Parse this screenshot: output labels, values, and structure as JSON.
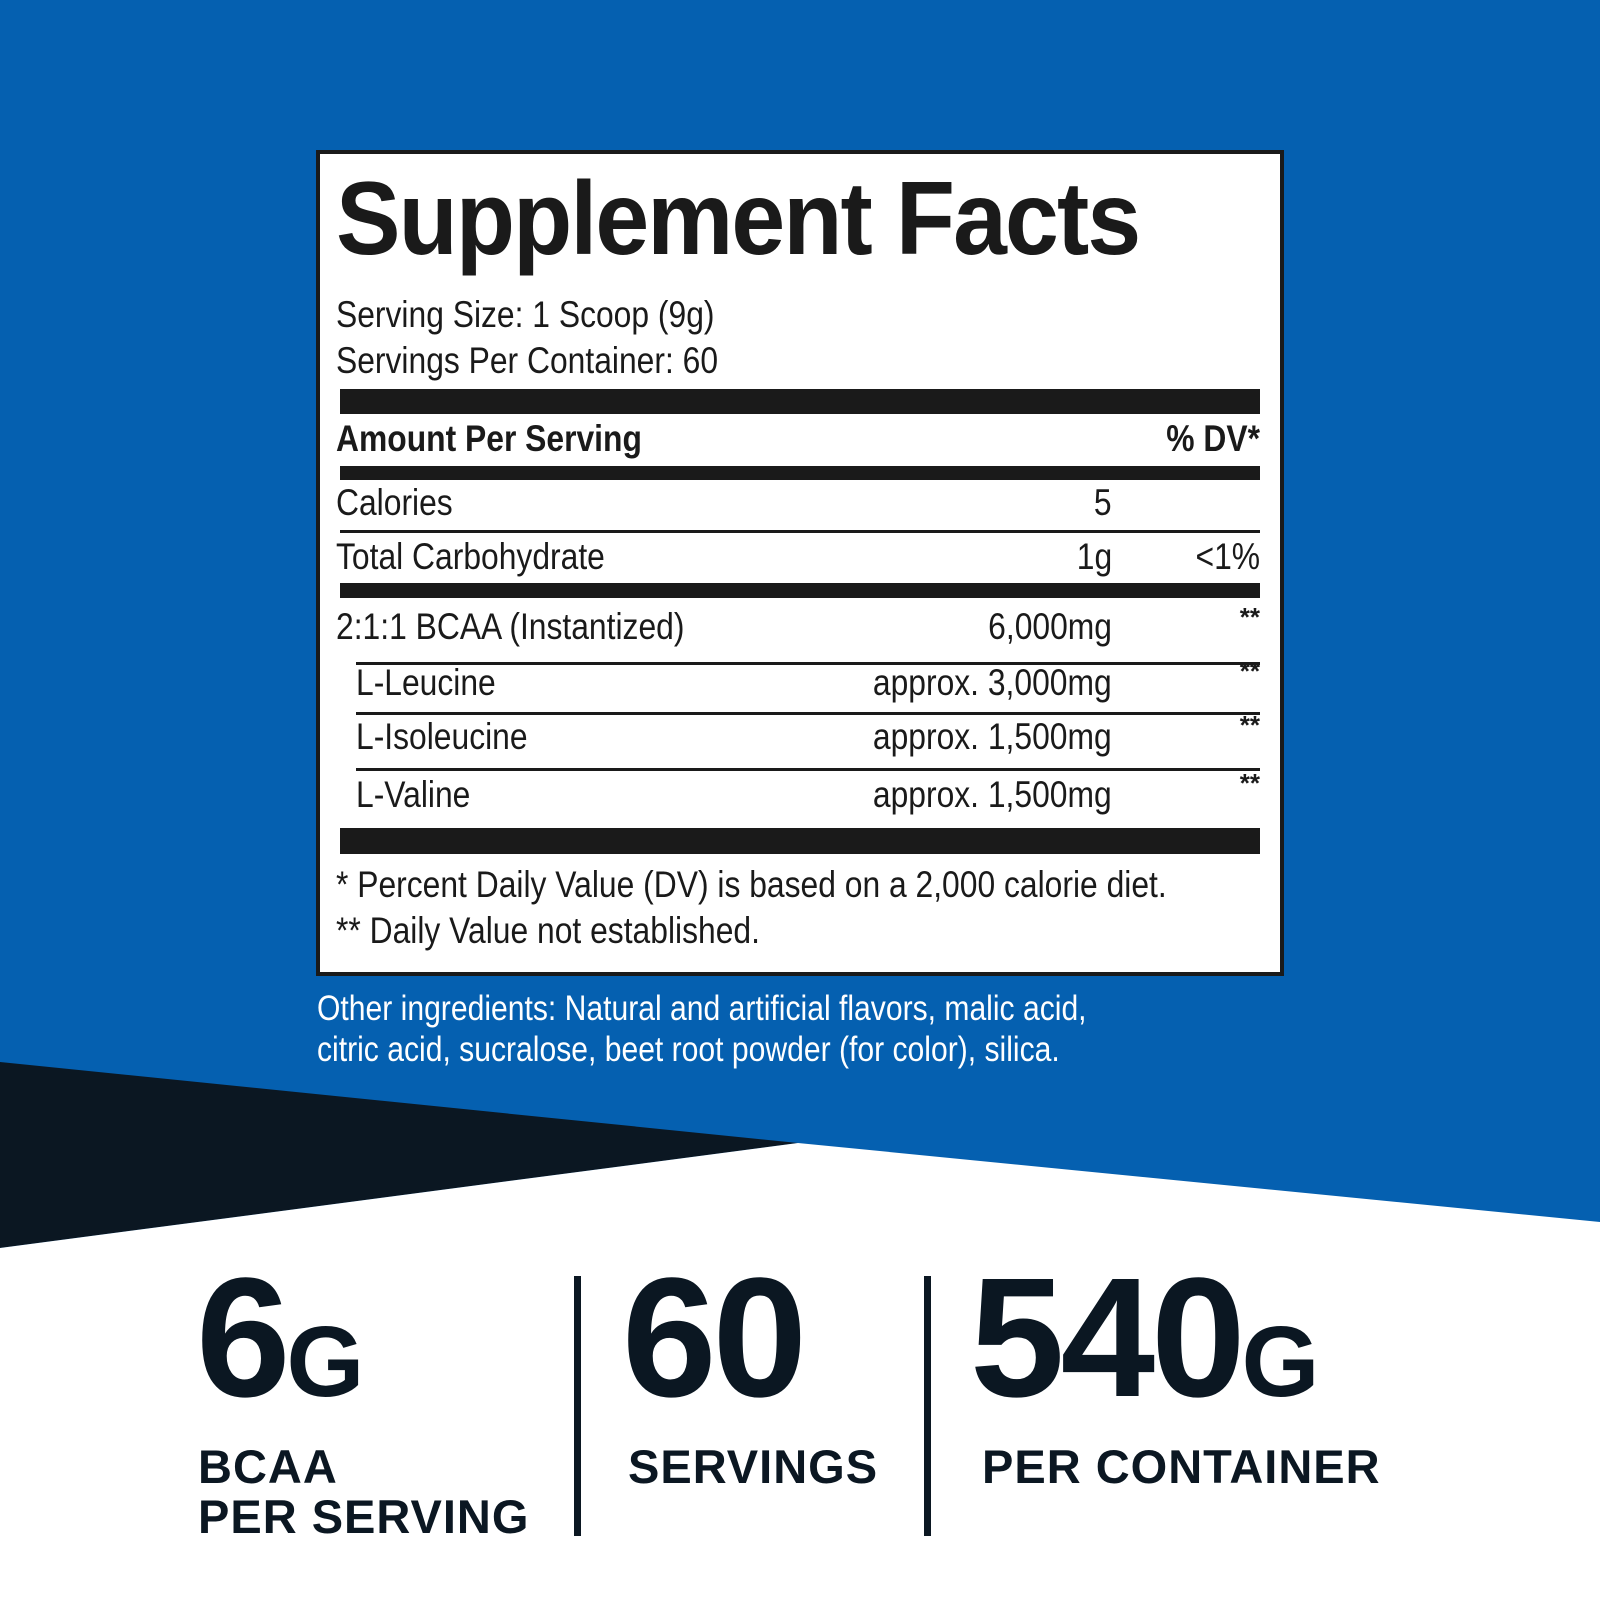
{
  "colors": {
    "background_blue": "#0560b0",
    "dark_navy": "#0b1722",
    "panel": "#ffffff"
  },
  "facts": {
    "title": "Supplement Facts",
    "serving_size": "Serving Size: 1 Scoop (9g)",
    "servings_per_container": "Servings Per Container: 60",
    "header_left": "Amount Per Serving",
    "header_right": "% DV*",
    "rows": [
      {
        "name": "Calories",
        "amount": "5",
        "dv": ""
      },
      {
        "name": "Total Carbohydrate",
        "amount": "1g",
        "dv": "<1%"
      },
      {
        "name": "2:1:1 BCAA (Instantized)",
        "amount": "6,000mg",
        "dv": "**"
      },
      {
        "name": "L-Leucine",
        "amount": "approx. 3,000mg",
        "dv": "**"
      },
      {
        "name": "L-Isoleucine",
        "amount": "approx. 1,500mg",
        "dv": "**"
      },
      {
        "name": "L-Valine",
        "amount": "approx. 1,500mg",
        "dv": "**"
      }
    ],
    "footnote1": "* Percent Daily Value (DV) is based on a 2,000 calorie diet.",
    "footnote2": "** Daily Value not established."
  },
  "other_ingredients": {
    "line1": "Other ingredients: Natural and artificial flavors, malic acid,",
    "line2": "citric acid, sucralose, beet root powder (for color), silica."
  },
  "stats": [
    {
      "number": "6",
      "unit": "G",
      "label1": "BCAA",
      "label2": "PER SERVING"
    },
    {
      "number": "60",
      "unit": "",
      "label1": "SERVINGS",
      "label2": ""
    },
    {
      "number": "540",
      "unit": "G",
      "label1": "PER CONTAINER",
      "label2": ""
    }
  ]
}
